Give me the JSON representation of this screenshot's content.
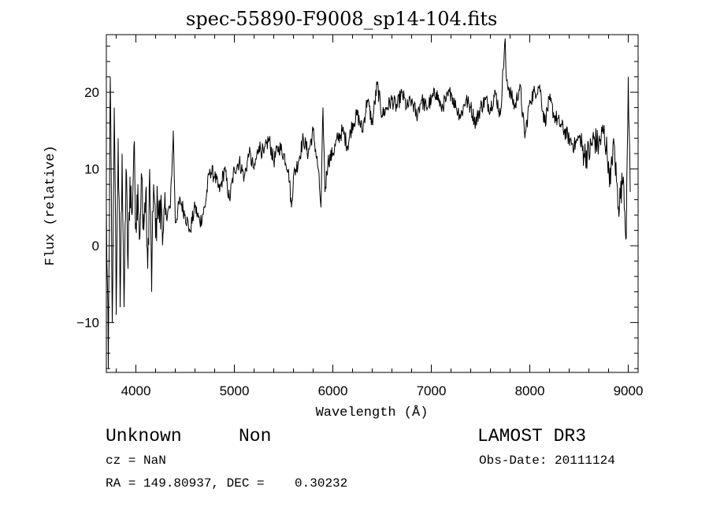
{
  "figure": {
    "title": "spec-55890-F9008_sp14-104.fits",
    "class_label": "Unknown",
    "subclass_label": "Non",
    "survey_label": "LAMOST DR3",
    "cz_text": "cz = NaN",
    "obs_date_text": "Obs-Date: 20111124",
    "coords_text": "RA = 149.80937, DEC =    0.30232"
  },
  "chart_data": {
    "type": "line",
    "title": "spec-55890-F9008_sp14-104.fits",
    "xlabel": "Wavelength (Å)",
    "ylabel": "Flux (relative)",
    "xlim": [
      3700,
      9100
    ],
    "ylim": [
      -16.5,
      27.5
    ],
    "x_ticks": [
      4000,
      5000,
      6000,
      7000,
      8000,
      9000
    ],
    "x_tick_labels": [
      "4000",
      "5000",
      "6000",
      "7000",
      "8000",
      "9000"
    ],
    "y_ticks": [
      -10,
      0,
      10,
      20
    ],
    "y_tick_labels": [
      "−10",
      "0",
      "10",
      "20"
    ],
    "grid": false,
    "line_color": "#000000",
    "series": [
      {
        "x": [
          3700,
          3720,
          3740,
          3760,
          3780,
          3800,
          3820,
          3840,
          3860,
          3880,
          3900,
          3920,
          3940,
          3960,
          3980,
          4000,
          4020,
          4040,
          4060,
          4080,
          4100,
          4120,
          4140,
          4160,
          4180,
          4200,
          4220,
          4240,
          4260,
          4280,
          4300,
          4350,
          4380,
          4400,
          4450,
          4500,
          4550,
          4600,
          4650,
          4700,
          4750,
          4800,
          4850,
          4900,
          4950,
          5000,
          5050,
          5100,
          5150,
          5200,
          5250,
          5300,
          5350,
          5400,
          5450,
          5500,
          5550,
          5580,
          5600,
          5650,
          5700,
          5750,
          5800,
          5850,
          5880,
          5900,
          5920,
          5950,
          6000,
          6050,
          6100,
          6150,
          6200,
          6250,
          6300,
          6350,
          6400,
          6450,
          6500,
          6550,
          6600,
          6650,
          6700,
          6750,
          6800,
          6850,
          6900,
          6950,
          7000,
          7050,
          7100,
          7150,
          7200,
          7250,
          7300,
          7350,
          7400,
          7450,
          7500,
          7550,
          7600,
          7650,
          7700,
          7750,
          7760,
          7800,
          7850,
          7900,
          7950,
          8000,
          8050,
          8100,
          8150,
          8200,
          8250,
          8300,
          8350,
          8400,
          8450,
          8500,
          8550,
          8600,
          8650,
          8700,
          8750,
          8800,
          8820,
          8850,
          8900,
          8950,
          8980,
          9000,
          9020
        ],
        "y": [
          5,
          -16,
          22,
          -10,
          18,
          -9,
          14,
          -8,
          12,
          -8,
          10,
          -3,
          9,
          4,
          13,
          3,
          8,
          1,
          9,
          2,
          7,
          -3,
          10,
          -6,
          8,
          1,
          6,
          3,
          5,
          2,
          4,
          5,
          15,
          3,
          6,
          4,
          2,
          5,
          3,
          5,
          10,
          9,
          7,
          10,
          6,
          10,
          11,
          9,
          12,
          10,
          13,
          12,
          14,
          11,
          13,
          12,
          10,
          5,
          9,
          11,
          14,
          12,
          15,
          10,
          5,
          18,
          7,
          11,
          12,
          14,
          15,
          13,
          16,
          17,
          15,
          19,
          16,
          21,
          17,
          18,
          19,
          18,
          20,
          18,
          19,
          17,
          19,
          18,
          19,
          20,
          18,
          19,
          20,
          18,
          17,
          19,
          18,
          16,
          18,
          19,
          18,
          20,
          17,
          27,
          22,
          20,
          18,
          21,
          14,
          19,
          20,
          21,
          16,
          19,
          17,
          16,
          15,
          14,
          13,
          14,
          12,
          12,
          14,
          13,
          15,
          11,
          8,
          14,
          5,
          9,
          1,
          22,
          7
        ]
      }
    ]
  }
}
